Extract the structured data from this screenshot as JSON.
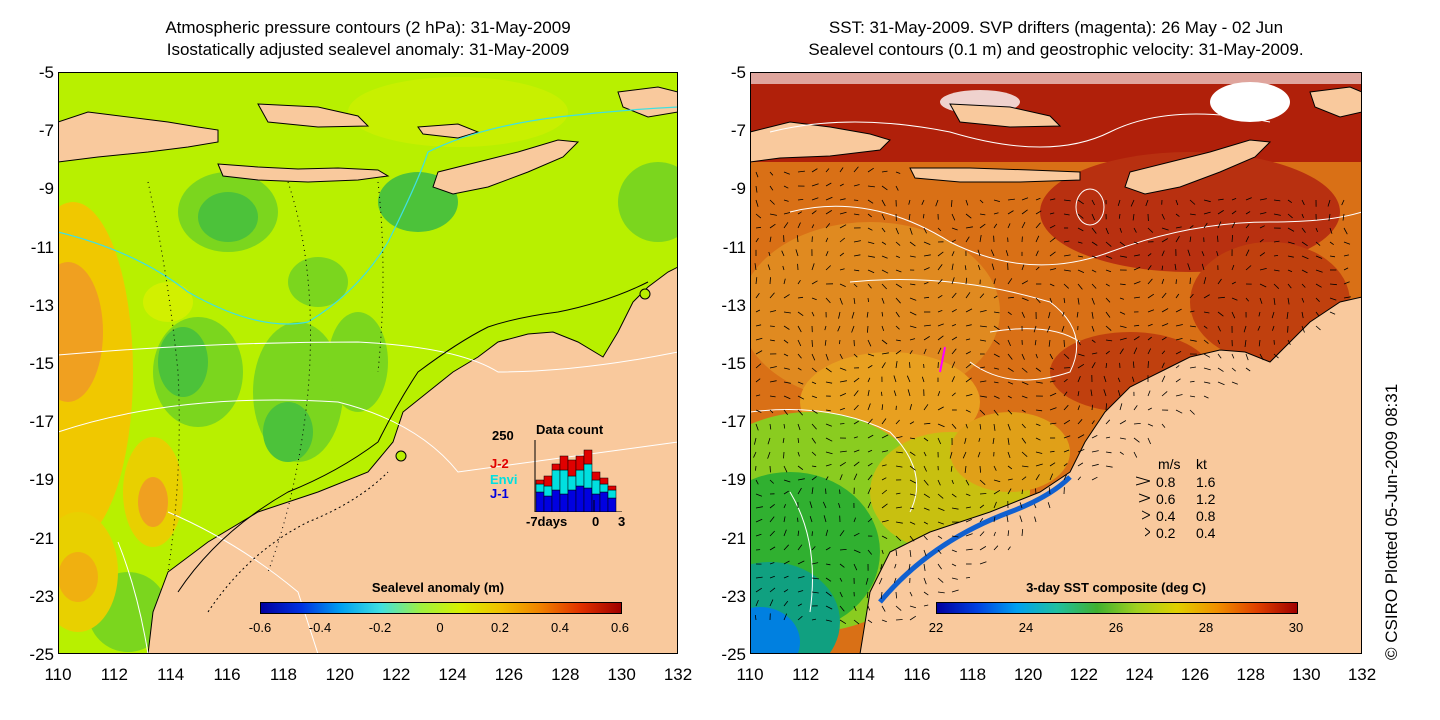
{
  "left_map": {
    "title_line1": "Atmospheric pressure contours (2 hPa): 31-May-2009",
    "title_line2": "Isostatically adjusted sealevel anomaly: 31-May-2009",
    "colorbar": {
      "title": "Sealevel anomaly (m)",
      "labels": [
        "-0.6",
        "-0.4",
        "-0.2",
        "0",
        "0.2",
        "0.4",
        "0.6"
      ]
    },
    "inset": {
      "title": "Data count",
      "ymax_label": "250",
      "legend": [
        {
          "label": "J-2",
          "color": "#e00000"
        },
        {
          "label": "Envi",
          "color": "#00e0e0"
        },
        {
          "label": "J-1",
          "color": "#0000e0"
        }
      ],
      "x_labels": [
        "-7days",
        "0",
        "3"
      ]
    }
  },
  "right_map": {
    "title_line1": "SST: 31-May-2009. SVP drifters (magenta): 26 May - 02 Jun",
    "title_line2": "Sealevel contours (0.1 m) and geostrophic velocity: 31-May-2009.",
    "colorbar": {
      "title": "3-day SST composite (deg C)",
      "labels": [
        "22",
        "24",
        "26",
        "28",
        "30"
      ]
    },
    "velocity_key": {
      "header_ms": "m/s",
      "header_kt": "kt",
      "rows": [
        {
          "ms": "0.8",
          "kt": "1.6"
        },
        {
          "ms": "0.6",
          "kt": "1.2"
        },
        {
          "ms": "0.4",
          "kt": "0.8"
        },
        {
          "ms": "0.2",
          "kt": "0.4"
        }
      ]
    }
  },
  "axes": {
    "y_labels": [
      "-5",
      "-7",
      "-9",
      "-11",
      "-13",
      "-15",
      "-17",
      "-19",
      "-21",
      "-23",
      "-25"
    ],
    "x_labels": [
      "110",
      "112",
      "114",
      "116",
      "118",
      "120",
      "122",
      "124",
      "126",
      "128",
      "130",
      "132"
    ]
  },
  "stamp": "© CSIRO Plotted 05-Jun-2009 08:31",
  "colors": {
    "land": "#f9c99d",
    "sla_background": "#b8f000",
    "sst_warm": "#d86a10",
    "sst_hot": "#b01a08"
  }
}
